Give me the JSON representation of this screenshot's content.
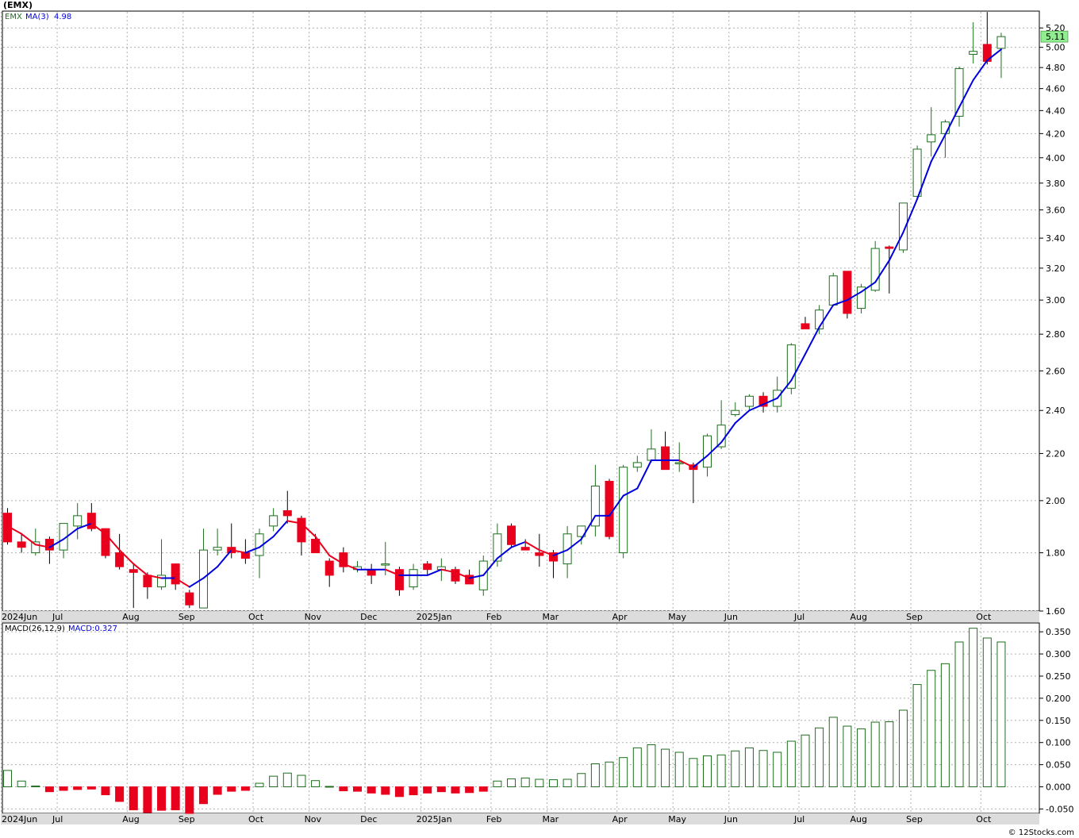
{
  "window": {
    "title": "(EMX)"
  },
  "footer": {
    "credit": "© 12Stocks.com"
  },
  "colors": {
    "up_candle": "#1e6e1e",
    "down_candle": "#e8001c",
    "ma_rising": "#0000dd",
    "ma_falling": "#e8001c",
    "macd_bar": "#1e6e1e",
    "macd_neg": "#e8001c",
    "last_price_box": "#90ee90",
    "grid": "#b0b0b0"
  },
  "chart_data": [
    {
      "type": "candlestick",
      "ticker": "EMX",
      "legend": {
        "ticker_label": "EMX",
        "ma_label": "MA(3)",
        "ma_value": "4.98"
      },
      "last_price_label": "5.11",
      "scale": "log",
      "ylim": [
        1.6,
        5.38
      ],
      "y_ticks": [
        "1.60",
        "1.80",
        "2.00",
        "2.20",
        "2.40",
        "2.60",
        "2.80",
        "3.00",
        "3.20",
        "3.40",
        "3.60",
        "3.80",
        "4.00",
        "4.20",
        "4.40",
        "4.60",
        "4.80",
        "5.00",
        "5.20"
      ],
      "x_labels": [
        {
          "label": "2024Jun",
          "i": 0
        },
        {
          "label": "Jul",
          "i": 4
        },
        {
          "label": "Aug",
          "i": 9
        },
        {
          "label": "Sep",
          "i": 13
        },
        {
          "label": "Oct",
          "i": 18
        },
        {
          "label": "Nov",
          "i": 22
        },
        {
          "label": "Dec",
          "i": 26
        },
        {
          "label": "2025Jan",
          "i": 30
        },
        {
          "label": "Feb",
          "i": 35
        },
        {
          "label": "Mar",
          "i": 39
        },
        {
          "label": "Apr",
          "i": 44
        },
        {
          "label": "May",
          "i": 48
        },
        {
          "label": "Jun",
          "i": 52
        },
        {
          "label": "Jul",
          "i": 57
        },
        {
          "label": "Aug",
          "i": 61
        },
        {
          "label": "Sep",
          "i": 65
        },
        {
          "label": "Oct",
          "i": 70
        }
      ],
      "candles": [
        {
          "o": 1.95,
          "h": 1.97,
          "l": 1.83,
          "c": 1.84
        },
        {
          "o": 1.84,
          "h": 1.87,
          "l": 1.8,
          "c": 1.82
        },
        {
          "o": 1.8,
          "h": 1.89,
          "l": 1.79,
          "c": 1.84
        },
        {
          "o": 1.85,
          "h": 1.86,
          "l": 1.76,
          "c": 1.81
        },
        {
          "o": 1.81,
          "h": 1.91,
          "l": 1.78,
          "c": 1.91
        },
        {
          "o": 1.9,
          "h": 1.99,
          "l": 1.85,
          "c": 1.94
        },
        {
          "o": 1.95,
          "h": 1.99,
          "l": 1.88,
          "c": 1.89
        },
        {
          "o": 1.89,
          "h": 1.89,
          "l": 1.78,
          "c": 1.79
        },
        {
          "o": 1.8,
          "h": 1.87,
          "l": 1.74,
          "c": 1.75
        },
        {
          "o": 1.74,
          "h": 1.76,
          "l": 1.61,
          "c": 1.73
        },
        {
          "o": 1.72,
          "h": 1.73,
          "l": 1.64,
          "c": 1.68
        },
        {
          "o": 1.68,
          "h": 1.85,
          "l": 1.67,
          "c": 1.72
        },
        {
          "o": 1.76,
          "h": 1.76,
          "l": 1.67,
          "c": 1.69
        },
        {
          "o": 1.66,
          "h": 1.67,
          "l": 1.61,
          "c": 1.62
        },
        {
          "o": 1.61,
          "h": 1.89,
          "l": 1.61,
          "c": 1.81
        },
        {
          "o": 1.81,
          "h": 1.89,
          "l": 1.79,
          "c": 1.82
        },
        {
          "o": 1.82,
          "h": 1.91,
          "l": 1.78,
          "c": 1.8
        },
        {
          "o": 1.8,
          "h": 1.85,
          "l": 1.76,
          "c": 1.78
        },
        {
          "o": 1.79,
          "h": 1.89,
          "l": 1.71,
          "c": 1.87
        },
        {
          "o": 1.9,
          "h": 1.97,
          "l": 1.88,
          "c": 1.94
        },
        {
          "o": 1.96,
          "h": 2.04,
          "l": 1.91,
          "c": 1.94
        },
        {
          "o": 1.93,
          "h": 1.94,
          "l": 1.79,
          "c": 1.84
        },
        {
          "o": 1.85,
          "h": 1.87,
          "l": 1.8,
          "c": 1.8
        },
        {
          "o": 1.77,
          "h": 1.78,
          "l": 1.68,
          "c": 1.72
        },
        {
          "o": 1.8,
          "h": 1.82,
          "l": 1.73,
          "c": 1.75
        },
        {
          "o": 1.74,
          "h": 1.77,
          "l": 1.73,
          "c": 1.75
        },
        {
          "o": 1.74,
          "h": 1.76,
          "l": 1.69,
          "c": 1.72
        },
        {
          "o": 1.76,
          "h": 1.84,
          "l": 1.72,
          "c": 1.76
        },
        {
          "o": 1.74,
          "h": 1.75,
          "l": 1.65,
          "c": 1.67
        },
        {
          "o": 1.68,
          "h": 1.76,
          "l": 1.67,
          "c": 1.74
        },
        {
          "o": 1.76,
          "h": 1.77,
          "l": 1.72,
          "c": 1.74
        },
        {
          "o": 1.74,
          "h": 1.78,
          "l": 1.7,
          "c": 1.75
        },
        {
          "o": 1.74,
          "h": 1.75,
          "l": 1.69,
          "c": 1.7
        },
        {
          "o": 1.72,
          "h": 1.74,
          "l": 1.69,
          "c": 1.69
        },
        {
          "o": 1.67,
          "h": 1.79,
          "l": 1.65,
          "c": 1.77
        },
        {
          "o": 1.77,
          "h": 1.91,
          "l": 1.75,
          "c": 1.87
        },
        {
          "o": 1.9,
          "h": 1.91,
          "l": 1.82,
          "c": 1.83
        },
        {
          "o": 1.82,
          "h": 1.85,
          "l": 1.81,
          "c": 1.81
        },
        {
          "o": 1.8,
          "h": 1.87,
          "l": 1.75,
          "c": 1.79
        },
        {
          "o": 1.8,
          "h": 1.81,
          "l": 1.71,
          "c": 1.77
        },
        {
          "o": 1.76,
          "h": 1.9,
          "l": 1.71,
          "c": 1.87
        },
        {
          "o": 1.86,
          "h": 1.9,
          "l": 1.83,
          "c": 1.9
        },
        {
          "o": 1.9,
          "h": 2.15,
          "l": 1.86,
          "c": 2.06
        },
        {
          "o": 2.08,
          "h": 2.09,
          "l": 1.85,
          "c": 1.86
        },
        {
          "o": 1.8,
          "h": 2.15,
          "l": 1.78,
          "c": 2.14
        },
        {
          "o": 2.14,
          "h": 2.19,
          "l": 2.12,
          "c": 2.16
        },
        {
          "o": 2.17,
          "h": 2.31,
          "l": 2.16,
          "c": 2.22
        },
        {
          "o": 2.23,
          "h": 2.3,
          "l": 2.13,
          "c": 2.13
        },
        {
          "o": 2.16,
          "h": 2.25,
          "l": 2.12,
          "c": 2.16
        },
        {
          "o": 2.15,
          "h": 2.16,
          "l": 1.99,
          "c": 2.13
        },
        {
          "o": 2.14,
          "h": 2.29,
          "l": 2.1,
          "c": 2.28
        },
        {
          "o": 2.23,
          "h": 2.45,
          "l": 2.22,
          "c": 2.33
        },
        {
          "o": 2.38,
          "h": 2.44,
          "l": 2.37,
          "c": 2.4
        },
        {
          "o": 2.42,
          "h": 2.48,
          "l": 2.4,
          "c": 2.47
        },
        {
          "o": 2.47,
          "h": 2.49,
          "l": 2.39,
          "c": 2.42
        },
        {
          "o": 2.42,
          "h": 2.57,
          "l": 2.39,
          "c": 2.5
        },
        {
          "o": 2.51,
          "h": 2.75,
          "l": 2.48,
          "c": 2.74
        },
        {
          "o": 2.86,
          "h": 2.9,
          "l": 2.83,
          "c": 2.83
        },
        {
          "o": 2.83,
          "h": 2.97,
          "l": 2.8,
          "c": 2.94
        },
        {
          "o": 2.97,
          "h": 3.17,
          "l": 2.97,
          "c": 3.15
        },
        {
          "o": 3.18,
          "h": 3.18,
          "l": 2.89,
          "c": 2.92
        },
        {
          "o": 2.95,
          "h": 3.1,
          "l": 2.92,
          "c": 3.08
        },
        {
          "o": 3.06,
          "h": 3.38,
          "l": 3.05,
          "c": 3.33
        },
        {
          "o": 3.34,
          "h": 3.35,
          "l": 3.04,
          "c": 3.33
        },
        {
          "o": 3.32,
          "h": 3.65,
          "l": 3.3,
          "c": 3.65
        },
        {
          "o": 3.7,
          "h": 4.1,
          "l": 3.68,
          "c": 4.07
        },
        {
          "o": 4.13,
          "h": 4.43,
          "l": 4.01,
          "c": 4.19
        },
        {
          "o": 4.2,
          "h": 4.32,
          "l": 4.0,
          "c": 4.3
        },
        {
          "o": 4.35,
          "h": 4.81,
          "l": 4.26,
          "c": 4.79
        },
        {
          "o": 4.93,
          "h": 5.26,
          "l": 4.84,
          "c": 4.96
        },
        {
          "o": 5.03,
          "h": 5.37,
          "l": 4.83,
          "c": 4.86
        },
        {
          "o": 4.99,
          "h": 5.15,
          "l": 4.7,
          "c": 5.11
        }
      ],
      "ma3": [
        1.9,
        1.87,
        1.83,
        1.82,
        1.85,
        1.89,
        1.91,
        1.87,
        1.81,
        1.76,
        1.72,
        1.71,
        1.71,
        1.68,
        1.71,
        1.75,
        1.81,
        1.8,
        1.82,
        1.86,
        1.92,
        1.91,
        1.86,
        1.79,
        1.76,
        1.74,
        1.74,
        1.74,
        1.72,
        1.72,
        1.72,
        1.74,
        1.73,
        1.71,
        1.72,
        1.78,
        1.82,
        1.84,
        1.81,
        1.79,
        1.81,
        1.85,
        1.94,
        1.94,
        2.02,
        2.05,
        2.17,
        2.17,
        2.17,
        2.14,
        2.19,
        2.25,
        2.34,
        2.4,
        2.43,
        2.46,
        2.55,
        2.69,
        2.84,
        2.97,
        3.0,
        3.05,
        3.11,
        3.25,
        3.44,
        3.68,
        3.97,
        4.19,
        4.43,
        4.68,
        4.87,
        4.98
      ]
    },
    {
      "type": "bar",
      "name": "MACD(26,12,9)",
      "legend": {
        "name_label": "MACD(26,12,9)",
        "value_label": "MACD:0.327"
      },
      "ylim": [
        -0.06,
        0.37
      ],
      "y_ticks": [
        "-0.050",
        "0.000",
        "0.050",
        "0.100",
        "0.150",
        "0.200",
        "0.250",
        "0.300",
        "0.350"
      ],
      "values": [
        0.037,
        0.013,
        0.002,
        -0.011,
        -0.008,
        -0.006,
        -0.005,
        -0.018,
        -0.033,
        -0.052,
        -0.058,
        -0.053,
        -0.052,
        -0.06,
        -0.038,
        -0.017,
        -0.01,
        -0.008,
        0.008,
        0.024,
        0.031,
        0.026,
        0.014,
        0.001,
        -0.009,
        -0.01,
        -0.014,
        -0.017,
        -0.022,
        -0.018,
        -0.014,
        -0.011,
        -0.014,
        -0.013,
        -0.01,
        0.013,
        0.018,
        0.02,
        0.017,
        0.016,
        0.017,
        0.03,
        0.052,
        0.056,
        0.066,
        0.088,
        0.095,
        0.085,
        0.078,
        0.064,
        0.07,
        0.072,
        0.081,
        0.088,
        0.082,
        0.078,
        0.103,
        0.117,
        0.133,
        0.157,
        0.137,
        0.131,
        0.146,
        0.147,
        0.173,
        0.231,
        0.263,
        0.278,
        0.327,
        0.358,
        0.336,
        0.327
      ]
    }
  ]
}
